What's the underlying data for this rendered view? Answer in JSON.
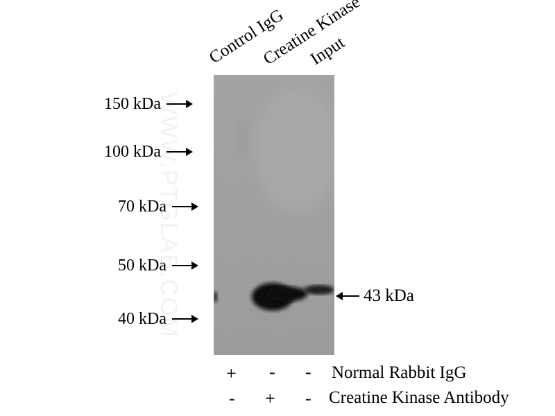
{
  "lanes": [
    "Control IgG",
    "Creatine Kinase",
    "Input"
  ],
  "markers": [
    "150 kDa",
    "100 kDa",
    "70 kDa",
    "50 kDa",
    "40 kDa"
  ],
  "band_label": "43 kDa",
  "watermark": "WWW.PTGLAB.COM",
  "conditions": [
    {
      "label": "Normal Rabbit IgG",
      "signs": [
        "+",
        "-",
        "-"
      ]
    },
    {
      "label": "Creatine Kinase Antibody",
      "signs": [
        "-",
        "+",
        "-"
      ]
    }
  ]
}
